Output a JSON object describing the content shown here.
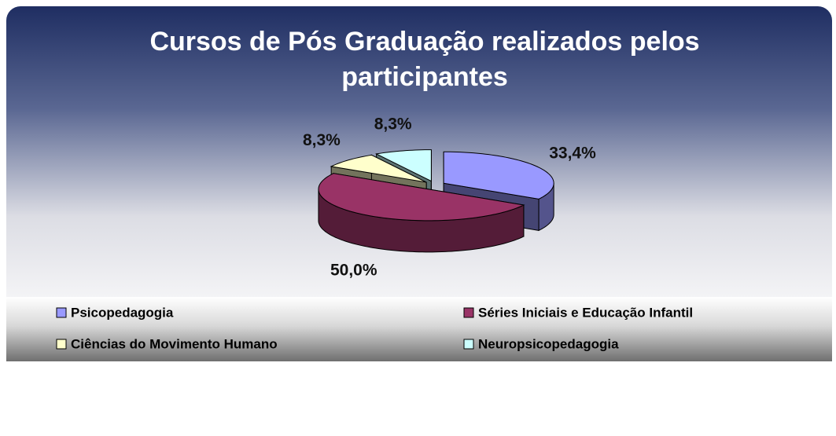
{
  "chart_data": {
    "type": "pie",
    "title": "Cursos de Pós Graduação realizados pelos participantes",
    "categories": [
      "Psicopedagogia",
      "Séries Iniciais e Educação Infantil",
      "Ciências do Movimento Humano",
      "Neuropsicopedagogia"
    ],
    "values": [
      33.4,
      50.0,
      8.3,
      8.3
    ],
    "value_labels": [
      "33,4%",
      "50,0%",
      "8,3%",
      "8,3%"
    ],
    "colors": [
      "#9999ff",
      "#993366",
      "#ffffcc",
      "#ccffff"
    ],
    "legend": "bottom"
  }
}
